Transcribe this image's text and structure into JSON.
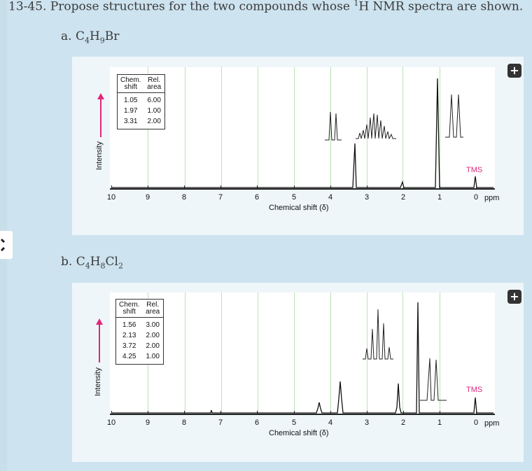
{
  "problem": {
    "number": "13-45.",
    "text_before": "Propose structures for the two compounds whose ",
    "nucleus_sup": "1",
    "nucleus": "H",
    "text_after": " NMR spectra are shown."
  },
  "parts": [
    {
      "label": "a.",
      "formula": [
        [
          "C",
          "4"
        ],
        [
          "H",
          "9"
        ],
        [
          "Br",
          ""
        ]
      ],
      "table": {
        "headers": [
          [
            "Chem.",
            "shift"
          ],
          [
            "Rel.",
            "area"
          ]
        ],
        "rows": [
          [
            "1.05",
            "6.00"
          ],
          [
            "1.97",
            "1.00"
          ],
          [
            "3.31",
            "2.00"
          ]
        ]
      }
    },
    {
      "label": "b.",
      "formula": [
        [
          "C",
          "4"
        ],
        [
          "H",
          "8"
        ],
        [
          "Cl",
          "2"
        ]
      ],
      "table": {
        "headers": [
          [
            "Chem.",
            "shift"
          ],
          [
            "Rel.",
            "area"
          ]
        ],
        "rows": [
          [
            "1.56",
            "3.00"
          ],
          [
            "2.13",
            "2.00"
          ],
          [
            "3.72",
            "2.00"
          ],
          [
            "4.25",
            "1.00"
          ]
        ]
      }
    }
  ],
  "axis": {
    "tick_labels": [
      "10",
      "9",
      "8",
      "7",
      "6",
      "5",
      "4",
      "3",
      "2",
      "1",
      "0"
    ],
    "unit": "ppm",
    "xlabel": "Chemical shift (δ)",
    "ylabel": "Intensity",
    "tms_label": "TMS"
  },
  "plus_symbol": "+",
  "colors": {
    "tms": "#e0287a",
    "grid": "#b9e2b3",
    "panel": "#eef6fa",
    "page": "#cde3ef"
  },
  "chart_data": [
    {
      "type": "line",
      "title": "a. C4H9Br",
      "xlabel": "Chemical shift (δ)",
      "ylabel": "Intensity",
      "xlim": [
        10,
        0
      ],
      "grid": true,
      "peaks": [
        {
          "shift": 3.31,
          "rel_area": 2.0,
          "multiplicity": "doublet"
        },
        {
          "shift": 1.97,
          "rel_area": 1.0,
          "multiplicity": "multiplet"
        },
        {
          "shift": 1.05,
          "rel_area": 6.0,
          "multiplicity": "doublet"
        },
        {
          "shift": 0.0,
          "label": "TMS"
        }
      ]
    },
    {
      "type": "line",
      "title": "b. C4H8Cl2",
      "xlabel": "Chemical shift (δ)",
      "ylabel": "Intensity",
      "xlim": [
        10,
        0
      ],
      "grid": true,
      "peaks": [
        {
          "shift": 4.25,
          "rel_area": 1.0,
          "multiplicity": "multiplet"
        },
        {
          "shift": 3.72,
          "rel_area": 2.0,
          "multiplicity": "triplet"
        },
        {
          "shift": 2.13,
          "rel_area": 2.0,
          "multiplicity": "quartet"
        },
        {
          "shift": 1.56,
          "rel_area": 3.0,
          "multiplicity": "doublet"
        },
        {
          "shift": 0.0,
          "label": "TMS"
        }
      ]
    }
  ]
}
